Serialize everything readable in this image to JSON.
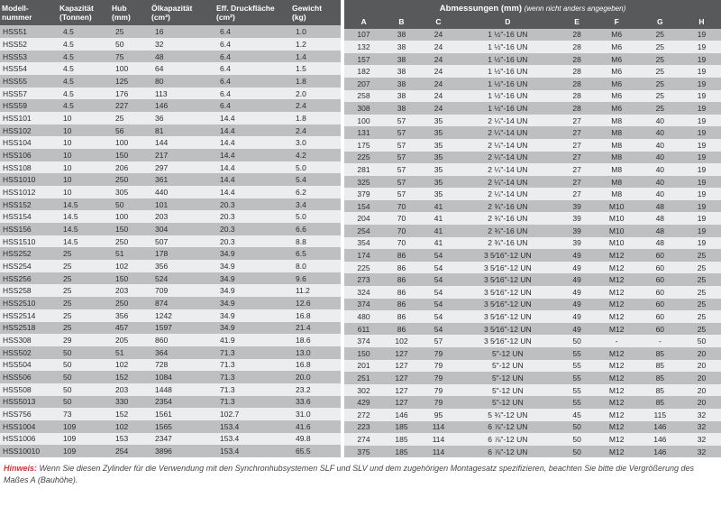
{
  "colors": {
    "header_bg": "#58595b",
    "header_fg": "#ffffff",
    "row_even": "#bdbfc1",
    "row_odd": "#ecedee",
    "hinweis_label": "#d33"
  },
  "left": {
    "headers": [
      "Modell-\nnummer",
      "Kapazität\n(Tonnen)",
      "Hub\n(mm)",
      "Ölkapazität\n(cm³)",
      "Eff. Druckfläche\n(cm²)",
      "Gewicht\n(kg)"
    ],
    "rows": [
      [
        "HSS51",
        "4.5",
        "25",
        "16",
        "6.4",
        "1.0"
      ],
      [
        "HSS52",
        "4.5",
        "50",
        "32",
        "6.4",
        "1.2"
      ],
      [
        "HSS53",
        "4.5",
        "75",
        "48",
        "6.4",
        "1.4"
      ],
      [
        "HSS54",
        "4.5",
        "100",
        "64",
        "6.4",
        "1.5"
      ],
      [
        "HSS55",
        "4.5",
        "125",
        "80",
        "6.4",
        "1.8"
      ],
      [
        "HSS57",
        "4.5",
        "176",
        "113",
        "6.4",
        "2.0"
      ],
      [
        "HSS59",
        "4.5",
        "227",
        "146",
        "6.4",
        "2.4"
      ],
      [
        "HSS101",
        "10",
        "25",
        "36",
        "14.4",
        "1.8"
      ],
      [
        "HSS102",
        "10",
        "56",
        "81",
        "14.4",
        "2.4"
      ],
      [
        "HSS104",
        "10",
        "100",
        "144",
        "14.4",
        "3.0"
      ],
      [
        "HSS106",
        "10",
        "150",
        "217",
        "14.4",
        "4.2"
      ],
      [
        "HSS108",
        "10",
        "206",
        "297",
        "14.4",
        "5.0"
      ],
      [
        "HSS1010",
        "10",
        "250",
        "361",
        "14.4",
        "5.4"
      ],
      [
        "HSS1012",
        "10",
        "305",
        "440",
        "14.4",
        "6.2"
      ],
      [
        "HSS152",
        "14.5",
        "50",
        "101",
        "20.3",
        "3.4"
      ],
      [
        "HSS154",
        "14.5",
        "100",
        "203",
        "20.3",
        "5.0"
      ],
      [
        "HSS156",
        "14.5",
        "150",
        "304",
        "20.3",
        "6.6"
      ],
      [
        "HSS1510",
        "14.5",
        "250",
        "507",
        "20.3",
        "8.8"
      ],
      [
        "HSS252",
        "25",
        "51",
        "178",
        "34.9",
        "6.5"
      ],
      [
        "HSS254",
        "25",
        "102",
        "356",
        "34.9",
        "8.0"
      ],
      [
        "HSS256",
        "25",
        "150",
        "524",
        "34.9",
        "9.6"
      ],
      [
        "HSS258",
        "25",
        "203",
        "709",
        "34.9",
        "11.2"
      ],
      [
        "HSS2510",
        "25",
        "250",
        "874",
        "34.9",
        "12.6"
      ],
      [
        "HSS2514",
        "25",
        "356",
        "1242",
        "34.9",
        "16.8"
      ],
      [
        "HSS2518",
        "25",
        "457",
        "1597",
        "34.9",
        "21.4"
      ],
      [
        "HSS308",
        "29",
        "205",
        "860",
        "41.9",
        "18.6"
      ],
      [
        "HSS502",
        "50",
        "51",
        "364",
        "71.3",
        "13.0"
      ],
      [
        "HSS504",
        "50",
        "102",
        "728",
        "71.3",
        "16.8"
      ],
      [
        "HSS506",
        "50",
        "152",
        "1084",
        "71.3",
        "20.0"
      ],
      [
        "HSS508",
        "50",
        "203",
        "1448",
        "71.3",
        "23.2"
      ],
      [
        "HSS5013",
        "50",
        "330",
        "2354",
        "71.3",
        "33.6"
      ],
      [
        "HSS756",
        "73",
        "152",
        "1561",
        "102.7",
        "31.0"
      ],
      [
        "HSS1004",
        "109",
        "102",
        "1565",
        "153.4",
        "41.6"
      ],
      [
        "HSS1006",
        "109",
        "153",
        "2347",
        "153.4",
        "49.8"
      ],
      [
        "HSS10010",
        "109",
        "254",
        "3896",
        "153.4",
        "65.5"
      ]
    ]
  },
  "right": {
    "title": "Abmessungen (mm)",
    "title_note": "(wenn nicht anders angegeben)",
    "headers": [
      "A",
      "B",
      "C",
      "D",
      "E",
      "F",
      "G",
      "H"
    ],
    "rows": [
      [
        "107",
        "38",
        "24",
        "1 ½\"-16 UN",
        "28",
        "M6",
        "25",
        "19"
      ],
      [
        "132",
        "38",
        "24",
        "1 ½\"-16 UN",
        "28",
        "M6",
        "25",
        "19"
      ],
      [
        "157",
        "38",
        "24",
        "1 ½\"-16 UN",
        "28",
        "M6",
        "25",
        "19"
      ],
      [
        "182",
        "38",
        "24",
        "1 ½\"-16 UN",
        "28",
        "M6",
        "25",
        "19"
      ],
      [
        "207",
        "38",
        "24",
        "1 ½\"-16 UN",
        "28",
        "M6",
        "25",
        "19"
      ],
      [
        "258",
        "38",
        "24",
        "1 ½\"-16 UN",
        "28",
        "M6",
        "25",
        "19"
      ],
      [
        "308",
        "38",
        "24",
        "1 ½\"-16 UN",
        "28",
        "M6",
        "25",
        "19"
      ],
      [
        "100",
        "57",
        "35",
        "2 ¼\"-14 UN",
        "27",
        "M8",
        "40",
        "19"
      ],
      [
        "131",
        "57",
        "35",
        "2 ¼\"-14 UN",
        "27",
        "M8",
        "40",
        "19"
      ],
      [
        "175",
        "57",
        "35",
        "2 ¼\"-14 UN",
        "27",
        "M8",
        "40",
        "19"
      ],
      [
        "225",
        "57",
        "35",
        "2 ¼\"-14 UN",
        "27",
        "M8",
        "40",
        "19"
      ],
      [
        "281",
        "57",
        "35",
        "2 ¼\"-14 UN",
        "27",
        "M8",
        "40",
        "19"
      ],
      [
        "325",
        "57",
        "35",
        "2 ¼\"-14 UN",
        "27",
        "M8",
        "40",
        "19"
      ],
      [
        "379",
        "57",
        "35",
        "2 ¼\"-14 UN",
        "27",
        "M8",
        "40",
        "19"
      ],
      [
        "154",
        "70",
        "41",
        "2 ¾\"-16 UN",
        "39",
        "M10",
        "48",
        "19"
      ],
      [
        "204",
        "70",
        "41",
        "2 ¾\"-16 UN",
        "39",
        "M10",
        "48",
        "19"
      ],
      [
        "254",
        "70",
        "41",
        "2 ¾\"-16 UN",
        "39",
        "M10",
        "48",
        "19"
      ],
      [
        "354",
        "70",
        "41",
        "2 ¾\"-16 UN",
        "39",
        "M10",
        "48",
        "19"
      ],
      [
        "174",
        "86",
        "54",
        "3 5⁄16\"-12 UN",
        "49",
        "M12",
        "60",
        "25"
      ],
      [
        "225",
        "86",
        "54",
        "3 5⁄16\"-12 UN",
        "49",
        "M12",
        "60",
        "25"
      ],
      [
        "273",
        "86",
        "54",
        "3 5⁄16\"-12 UN",
        "49",
        "M12",
        "60",
        "25"
      ],
      [
        "324",
        "86",
        "54",
        "3 5⁄16\"-12 UN",
        "49",
        "M12",
        "60",
        "25"
      ],
      [
        "374",
        "86",
        "54",
        "3 5⁄16\"-12 UN",
        "49",
        "M12",
        "60",
        "25"
      ],
      [
        "480",
        "86",
        "54",
        "3 5⁄16\"-12 UN",
        "49",
        "M12",
        "60",
        "25"
      ],
      [
        "611",
        "86",
        "54",
        "3 5⁄16\"-12 UN",
        "49",
        "M12",
        "60",
        "25"
      ],
      [
        "374",
        "102",
        "57",
        "3 5⁄16\"-12 UN",
        "50",
        "-",
        "-",
        "50"
      ],
      [
        "150",
        "127",
        "79",
        "5\"-12 UN",
        "55",
        "M12",
        "85",
        "20"
      ],
      [
        "201",
        "127",
        "79",
        "5\"-12 UN",
        "55",
        "M12",
        "85",
        "20"
      ],
      [
        "251",
        "127",
        "79",
        "5\"-12 UN",
        "55",
        "M12",
        "85",
        "20"
      ],
      [
        "302",
        "127",
        "79",
        "5\"-12 UN",
        "55",
        "M12",
        "85",
        "20"
      ],
      [
        "429",
        "127",
        "79",
        "5\"-12 UN",
        "55",
        "M12",
        "85",
        "20"
      ],
      [
        "272",
        "146",
        "95",
        "5 ¾\"-12 UN",
        "45",
        "M12",
        "115",
        "32"
      ],
      [
        "223",
        "185",
        "114",
        "6 ⅞\"-12 UN",
        "50",
        "M12",
        "146",
        "32"
      ],
      [
        "274",
        "185",
        "114",
        "6 ⅞\"-12 UN",
        "50",
        "M12",
        "146",
        "32"
      ],
      [
        "375",
        "185",
        "114",
        "6 ⅞\"-12 UN",
        "50",
        "M12",
        "146",
        "32"
      ]
    ]
  },
  "hinweis": {
    "label": "Hinweis:",
    "text": "Wenn Sie diesen Zylinder für die Verwendung mit den Synchronhubsystemen SLF und SLV und dem zugehörigen Montagesatz spezifizieren, beachten Sie bitte die Vergrößerung des Maßes A (Bauhöhe)."
  }
}
